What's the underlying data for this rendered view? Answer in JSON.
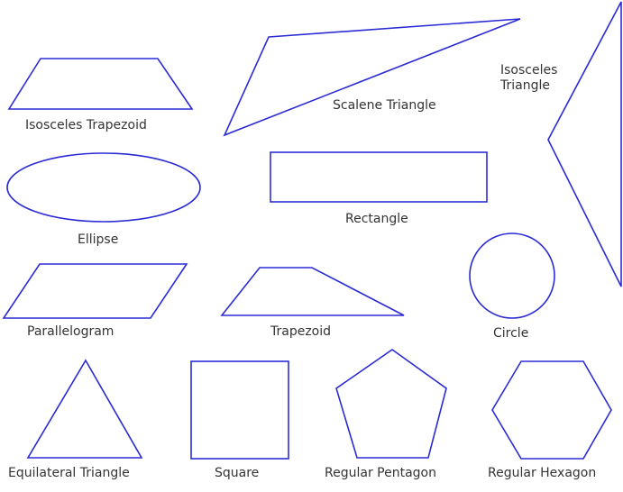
{
  "stroke_color": "#2b2bd6",
  "text_color": "#333333",
  "labels": {
    "isosceles_trapezoid": "Isosceles Trapezoid",
    "scalene_triangle": "Scalene Triangle",
    "isosceles_triangle_line1": "Isosceles",
    "isosceles_triangle_line2": "Triangle",
    "ellipse": "Ellipse",
    "rectangle": "Rectangle",
    "parallelogram": "Parallelogram",
    "trapezoid": "Trapezoid",
    "circle": "Circle",
    "equilateral_triangle": "Equilateral Triangle",
    "square": "Square",
    "regular_pentagon": "Regular Pentagon",
    "regular_hexagon": "Regular Hexagon"
  }
}
